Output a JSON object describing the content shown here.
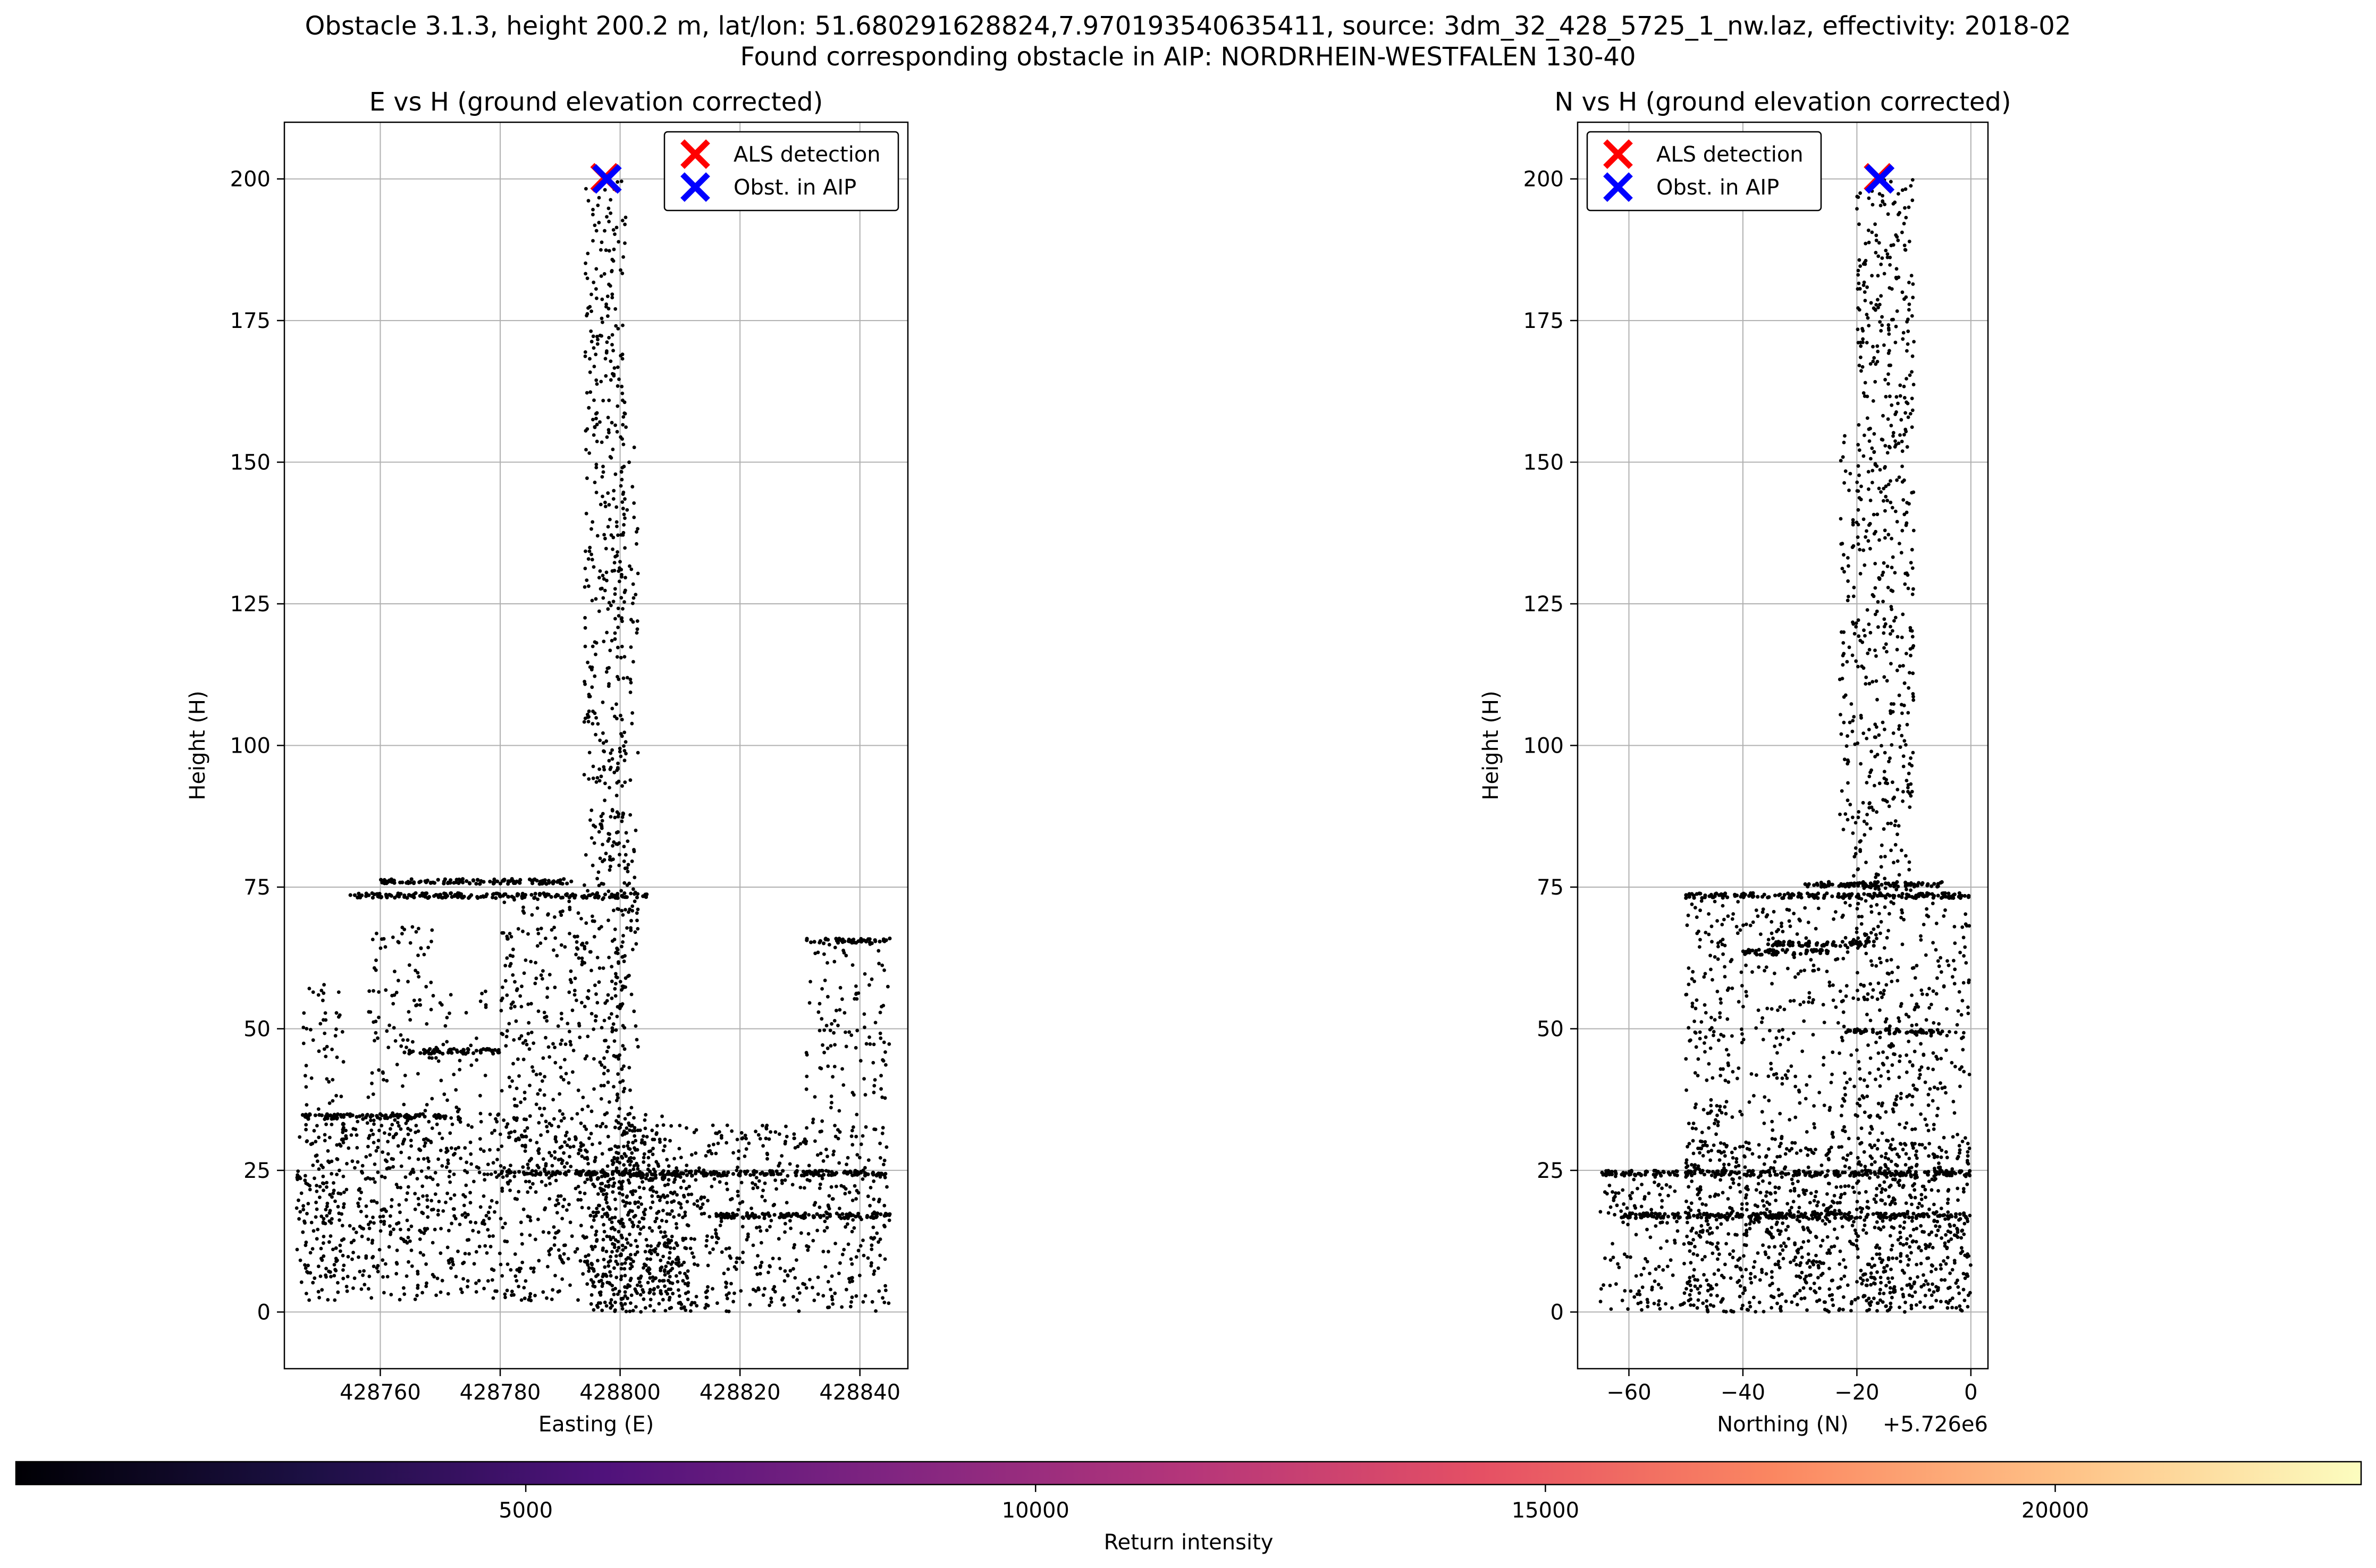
{
  "figure": {
    "suptitle_line1": "Obstacle 3.1.3, height 200.2 m, lat/lon: 51.680291628824,7.970193540635411, source: 3dm_32_428_5725_1_nw.laz, effectivity: 2018-02",
    "suptitle_line2": "Found corresponding obstacle in AIP: NORDRHEIN-WESTFALEN 130-40"
  },
  "colors": {
    "points": "#000000",
    "als_marker": "#ff0000",
    "aip_marker": "#0000ff",
    "grid": "#b0b0b0",
    "colormap": [
      "#000004",
      "#1c1044",
      "#4f127b",
      "#812581",
      "#b5367a",
      "#e55064",
      "#fb8761",
      "#fec287",
      "#fcfdbf"
    ]
  },
  "chart_data": [
    {
      "type": "scatter",
      "title": "E vs H (ground elevation corrected)",
      "xlabel": "Easting (E)",
      "ylabel": "Height (H)",
      "xlim": [
        428744,
        428848
      ],
      "ylim": [
        -10,
        210
      ],
      "xticks": [
        428760,
        428780,
        428800,
        428820,
        428840
      ],
      "yticks": [
        0,
        25,
        50,
        75,
        100,
        125,
        150,
        175,
        200
      ],
      "grid": true,
      "legend_position": "upper right",
      "legend": [
        "ALS detection",
        "Obst. in AIP"
      ],
      "markers": [
        {
          "name": "ALS detection",
          "x": 428797.5,
          "y": 200.2,
          "color": "#ff0000",
          "shape": "x"
        },
        {
          "name": "Obst. in AIP",
          "x": 428797.8,
          "y": 200.0,
          "color": "#0000ff",
          "shape": "x"
        }
      ],
      "point_regions": [
        {
          "x": [
            428794,
            428801
          ],
          "y": [
            0,
            200
          ],
          "density": 0.55
        },
        {
          "x": [
            428799,
            428803
          ],
          "y": [
            25,
            155
          ],
          "density": 0.4
        },
        {
          "x": [
            428780,
            428794
          ],
          "y": [
            25,
            73
          ],
          "density": 0.45
        },
        {
          "x": [
            428758,
            428769
          ],
          "y": [
            12,
            68
          ],
          "density": 0.3
        },
        {
          "x": [
            428747,
            428754
          ],
          "y": [
            2,
            58
          ],
          "density": 0.35
        },
        {
          "x": [
            428769,
            428778
          ],
          "y": [
            12,
            58
          ],
          "density": 0.2
        },
        {
          "x": [
            428746,
            428810
          ],
          "y": [
            2,
            35
          ],
          "density": 0.5
        },
        {
          "x": [
            428800,
            428845
          ],
          "y": [
            0,
            33
          ],
          "density": 0.5
        },
        {
          "x": [
            428831,
            428845
          ],
          "y": [
            30,
            66
          ],
          "density": 0.3
        },
        {
          "x": [
            428795,
            428812
          ],
          "y": [
            0,
            25
          ],
          "density": 0.6
        }
      ],
      "point_lines": [
        {
          "x": [
            428755,
            428805
          ],
          "y": 73.5
        },
        {
          "x": [
            428760,
            428792
          ],
          "y": 76
        },
        {
          "x": [
            428780,
            428845
          ],
          "y": 24.5
        },
        {
          "x": [
            428831,
            428845
          ],
          "y": 65.5
        },
        {
          "x": [
            428747,
            428771
          ],
          "y": 34.5
        },
        {
          "x": [
            428764,
            428780
          ],
          "y": 46
        },
        {
          "x": [
            428816,
            428845
          ],
          "y": 17
        }
      ]
    },
    {
      "type": "scatter",
      "title": "N vs H (ground elevation corrected)",
      "xlabel": "Northing (N)",
      "x_offset_label": "+5.726e6",
      "ylabel": "Height (H)",
      "xlim": [
        -69,
        3
      ],
      "ylim": [
        -10,
        210
      ],
      "xticks": [
        -60,
        -40,
        -20,
        0
      ],
      "yticks": [
        0,
        25,
        50,
        75,
        100,
        125,
        150,
        175,
        200
      ],
      "grid": true,
      "legend_position": "upper left",
      "legend": [
        "ALS detection",
        "Obst. in AIP"
      ],
      "markers": [
        {
          "name": "ALS detection",
          "x": -16.2,
          "y": 200.2,
          "color": "#ff0000",
          "shape": "x"
        },
        {
          "name": "Obst. in AIP",
          "x": -16.0,
          "y": 200.0,
          "color": "#0000ff",
          "shape": "x"
        }
      ],
      "point_regions": [
        {
          "x": [
            -20,
            -10
          ],
          "y": [
            0,
            200
          ],
          "density": 0.55
        },
        {
          "x": [
            -23,
            -20
          ],
          "y": [
            25,
            157
          ],
          "density": 0.35
        },
        {
          "x": [
            -50,
            -39
          ],
          "y": [
            0,
            73
          ],
          "density": 0.45
        },
        {
          "x": [
            -39,
            -22
          ],
          "y": [
            0,
            73
          ],
          "density": 0.3
        },
        {
          "x": [
            -10,
            0
          ],
          "y": [
            0,
            73
          ],
          "density": 0.4
        },
        {
          "x": [
            -65,
            -50
          ],
          "y": [
            0,
            25
          ],
          "density": 0.45
        },
        {
          "x": [
            -50,
            0
          ],
          "y": [
            0,
            30
          ],
          "density": 0.55
        }
      ],
      "point_lines": [
        {
          "x": [
            -50,
            0
          ],
          "y": 73.5
        },
        {
          "x": [
            -65,
            0
          ],
          "y": 24.5
        },
        {
          "x": [
            -36,
            -17
          ],
          "y": 65
        },
        {
          "x": [
            -40,
            -25
          ],
          "y": 63.5
        },
        {
          "x": [
            -22,
            -5
          ],
          "y": 49.5
        },
        {
          "x": [
            -62,
            0
          ],
          "y": 17
        },
        {
          "x": [
            -30,
            -5
          ],
          "y": 75.5
        }
      ]
    }
  ],
  "colorbar": {
    "label": "Return intensity",
    "range": [
      0,
      23000
    ],
    "ticks": [
      5000,
      10000,
      15000,
      20000
    ]
  }
}
